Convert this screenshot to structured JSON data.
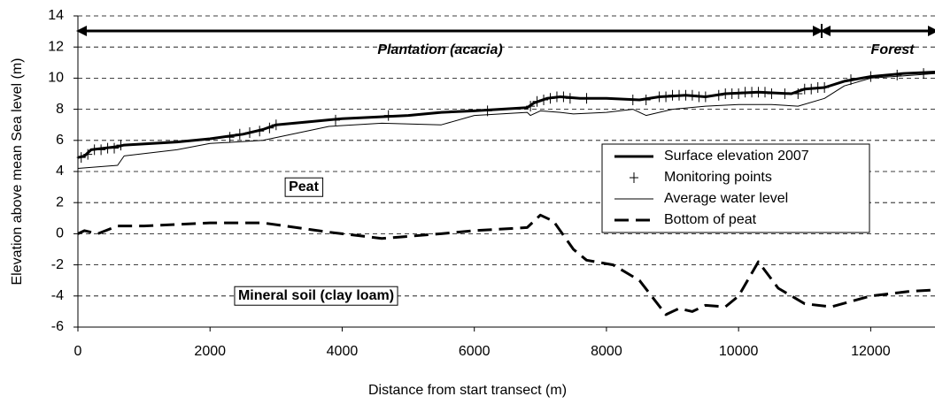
{
  "chart_data": {
    "type": "line",
    "xlabel": "Distance from start transect (m)",
    "ylabel": "Elevation above mean Sea level (m)",
    "xlim": [
      0,
      13000
    ],
    "xticks": [
      0,
      2000,
      4000,
      6000,
      8000,
      10000,
      12000
    ],
    "ylim": [
      -6,
      14
    ],
    "yticks": [
      -6,
      -4,
      -2,
      0,
      2,
      4,
      6,
      8,
      10,
      12,
      14
    ],
    "grid": true,
    "annotations": [
      "Plantation (acacia)",
      "Forest",
      "Peat",
      "Mineral soil (clay loam)"
    ],
    "series": [
      {
        "name": "Surface elevation 2007",
        "color": "#000000",
        "width": 3,
        "x": [
          0,
          100,
          200,
          600,
          700,
          1500,
          2000,
          2500,
          2800,
          3000,
          3500,
          4000,
          5000,
          5500,
          6000,
          6800,
          6900,
          7100,
          7300,
          7600,
          8000,
          8500,
          8800,
          9200,
          9500,
          9800,
          10300,
          10800,
          11000,
          11300,
          11600,
          12000,
          12500,
          13000
        ],
        "values": [
          4.9,
          5.0,
          5.4,
          5.6,
          5.7,
          5.9,
          6.1,
          6.4,
          6.7,
          7.0,
          7.2,
          7.4,
          7.6,
          7.8,
          7.9,
          8.1,
          8.4,
          8.7,
          8.8,
          8.7,
          8.7,
          8.6,
          8.8,
          8.9,
          8.8,
          9.0,
          9.1,
          9.0,
          9.3,
          9.4,
          9.8,
          10.1,
          10.3,
          10.4
        ]
      },
      {
        "name": "Monitoring points",
        "color": "#000000",
        "marker": "+",
        "x": [
          50,
          150,
          250,
          350,
          450,
          550,
          650,
          2300,
          2450,
          2600,
          2750,
          2900,
          3000,
          3900,
          4700,
          6200,
          6850,
          6950,
          7050,
          7150,
          7250,
          7350,
          7450,
          7700,
          8400,
          8600,
          8800,
          8900,
          9000,
          9100,
          9200,
          9300,
          9400,
          9500,
          9700,
          9800,
          9900,
          10000,
          10100,
          10200,
          10300,
          10400,
          10500,
          10700,
          10900,
          11000,
          11100,
          11200,
          11300,
          11700,
          12000,
          12400,
          12800
        ],
        "values": [
          4.9,
          5.1,
          5.4,
          5.4,
          5.5,
          5.5,
          5.7,
          6.2,
          6.4,
          6.5,
          6.6,
          6.8,
          7.0,
          7.3,
          7.6,
          7.9,
          8.2,
          8.5,
          8.6,
          8.7,
          8.8,
          8.8,
          8.7,
          8.7,
          8.6,
          8.6,
          8.8,
          8.8,
          8.9,
          8.9,
          8.9,
          8.9,
          8.8,
          8.8,
          8.9,
          9.0,
          9.0,
          9.0,
          9.1,
          9.1,
          9.1,
          9.1,
          9.0,
          9.0,
          9.0,
          9.3,
          9.3,
          9.4,
          9.4,
          9.9,
          10.1,
          10.2,
          10.3
        ]
      },
      {
        "name": "Average water level",
        "color": "#000000",
        "width": 1,
        "x": [
          0,
          600,
          700,
          1500,
          2000,
          2800,
          3800,
          4600,
          5500,
          6000,
          6800,
          6850,
          7000,
          7300,
          7500,
          8000,
          8400,
          8600,
          9000,
          9500,
          10000,
          10500,
          10900,
          11300,
          11600,
          12000,
          13000
        ],
        "values": [
          4.2,
          4.4,
          5.0,
          5.4,
          5.8,
          6.0,
          6.9,
          7.1,
          7.0,
          7.6,
          7.8,
          7.6,
          7.9,
          7.8,
          7.7,
          7.8,
          8.0,
          7.6,
          8.0,
          8.2,
          8.3,
          8.3,
          8.2,
          8.7,
          9.5,
          10.0,
          10.3
        ]
      },
      {
        "name": "Bottom of peat",
        "color": "#000000",
        "width": 3,
        "dash": true,
        "x": [
          0,
          100,
          300,
          600,
          1000,
          2000,
          2800,
          3800,
          4600,
          5500,
          6000,
          6800,
          7000,
          7200,
          7500,
          7700,
          8100,
          8500,
          8900,
          9100,
          9300,
          9500,
          9800,
          10000,
          10300,
          10600,
          11000,
          11400,
          12000,
          12600,
          13000
        ],
        "values": [
          0,
          0.2,
          0,
          0.5,
          0.5,
          0.7,
          0.7,
          0.1,
          -0.3,
          0,
          0.2,
          0.4,
          1.2,
          0.8,
          -1.0,
          -1.7,
          -2.0,
          -3.0,
          -5.2,
          -4.8,
          -5.0,
          -4.6,
          -4.7,
          -4.0,
          -1.8,
          -3.5,
          -4.5,
          -4.7,
          -4.0,
          -3.7,
          -3.6
        ]
      }
    ]
  }
}
